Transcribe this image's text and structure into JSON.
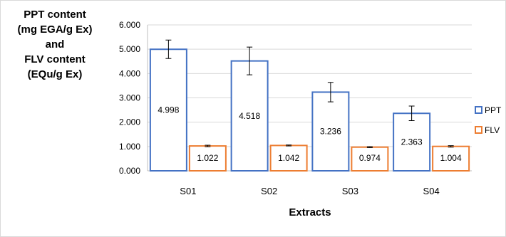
{
  "chart_data": {
    "type": "bar",
    "ylabel_lines": [
      "PPT content",
      "(mg EGA/g Ex)",
      "and",
      "FLV content",
      "(EQu/g Ex)"
    ],
    "xlabel": "Extracts",
    "categories": [
      "S01",
      "S02",
      "S03",
      "S04"
    ],
    "ylim": [
      0,
      6
    ],
    "yticks": [
      "0.000",
      "1.000",
      "2.000",
      "3.000",
      "4.000",
      "5.000",
      "6.000"
    ],
    "grid": true,
    "legend_position": "right",
    "series": [
      {
        "name": "PPT",
        "color": "#4472c4",
        "values": [
          4.998,
          4.518,
          3.236,
          2.363
        ],
        "labels": [
          "4.998",
          "4.518",
          "3.236",
          "2.363"
        ],
        "errors": [
          0.38,
          0.57,
          0.4,
          0.3
        ]
      },
      {
        "name": "FLV",
        "color": "#ed7d31",
        "values": [
          1.022,
          1.042,
          0.974,
          1.004
        ],
        "labels": [
          "1.022",
          "1.042",
          "0.974",
          "1.004"
        ],
        "errors": [
          0.03,
          0.02,
          0.02,
          0.03
        ]
      }
    ]
  }
}
